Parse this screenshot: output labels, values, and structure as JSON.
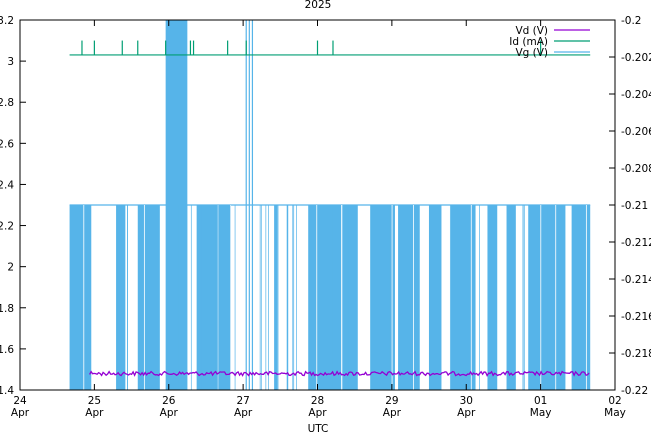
{
  "chart_data": {
    "type": "line",
    "title": "2025",
    "xlabel": "UTC",
    "x_ticks": [
      {
        "day": "24",
        "month": "Apr"
      },
      {
        "day": "25",
        "month": "Apr"
      },
      {
        "day": "26",
        "month": "Apr"
      },
      {
        "day": "27",
        "month": "Apr"
      },
      {
        "day": "28",
        "month": "Apr"
      },
      {
        "day": "29",
        "month": "Apr"
      },
      {
        "day": "30",
        "month": "Apr"
      },
      {
        "day": "01",
        "month": "May"
      },
      {
        "day": "02",
        "month": "May"
      }
    ],
    "xlim": [
      "2025-04-24",
      "2025-05-02"
    ],
    "y_left": {
      "ylim": [
        1.4,
        3.2
      ],
      "ticks": [
        "1.4",
        "1.6",
        "1.8",
        "2",
        "2.2",
        "2.4",
        "2.6",
        "2.8",
        "3",
        "3.2"
      ]
    },
    "y_right": {
      "ylim": [
        -0.22,
        -0.2
      ],
      "ticks": [
        "-0.22",
        "-0.218",
        "-0.216",
        "-0.214",
        "-0.212",
        "-0.21",
        "-0.208",
        "-0.206",
        "-0.204",
        "-0.202",
        "-0.2"
      ]
    },
    "legend_position": "top-right",
    "series": [
      {
        "name": "Vd (V)",
        "color": "#9400d3",
        "axis": "left",
        "x_range": [
          "2025-04-24T16:00",
          "2025-05-01T16:00"
        ],
        "typical_value": 1.48,
        "noise": 0.005
      },
      {
        "name": "Id (mA)",
        "color": "#009e73",
        "axis": "left",
        "x_range": [
          "2025-04-24T16:00",
          "2025-05-01T16:00"
        ],
        "typical_value": 3.03,
        "spike_value": 3.1,
        "spikes": [
          "2025-04-24T20:00",
          "2025-04-25T00:00",
          "2025-04-25T09:00",
          "2025-04-25T14:00",
          "2025-04-25T23:00",
          "2025-04-26T07:00",
          "2025-04-26T08:00",
          "2025-04-26T19:00",
          "2025-04-27T01:00",
          "2025-04-28T00:00",
          "2025-04-28T05:00",
          "2025-05-01T00:00"
        ]
      },
      {
        "name": "Vg (V)",
        "color": "#56b4e9",
        "axis": "right",
        "x_range": [
          "2025-04-24T16:00",
          "2025-05-01T16:00"
        ],
        "levels": {
          "low": -0.22,
          "high": -0.21,
          "peak": -0.2
        },
        "peak_windows": [
          [
            "2025-04-25T23:00",
            "2025-04-26T06:00"
          ]
        ],
        "peak_spikes": [
          "2025-04-27T01:00",
          "2025-04-27T02:00",
          "2025-04-27T03:00"
        ],
        "low_windows": [
          [
            "2025-04-24T16:00",
            "2025-04-24T23:00"
          ],
          [
            "2025-04-25T07:00",
            "2025-04-25T10:00"
          ],
          [
            "2025-04-25T14:00",
            "2025-04-25T21:00"
          ],
          [
            "2025-04-26T09:00",
            "2025-04-26T20:00"
          ],
          [
            "2025-04-27T10:00",
            "2025-04-27T11:00"
          ],
          [
            "2025-04-27T21:00",
            "2025-04-28T13:00"
          ],
          [
            "2025-04-28T17:00",
            "2025-04-29T01:00"
          ],
          [
            "2025-04-29T02:00",
            "2025-04-29T09:00"
          ],
          [
            "2025-04-29T12:00",
            "2025-04-29T16:00"
          ],
          [
            "2025-04-29T19:00",
            "2025-04-30T03:00"
          ],
          [
            "2025-04-30T07:00",
            "2025-04-30T10:00"
          ],
          [
            "2025-04-30T13:00",
            "2025-04-30T16:00"
          ],
          [
            "2025-04-30T20:00",
            "2025-05-01T08:00"
          ],
          [
            "2025-05-01T10:00",
            "2025-05-01T16:00"
          ]
        ]
      }
    ]
  }
}
